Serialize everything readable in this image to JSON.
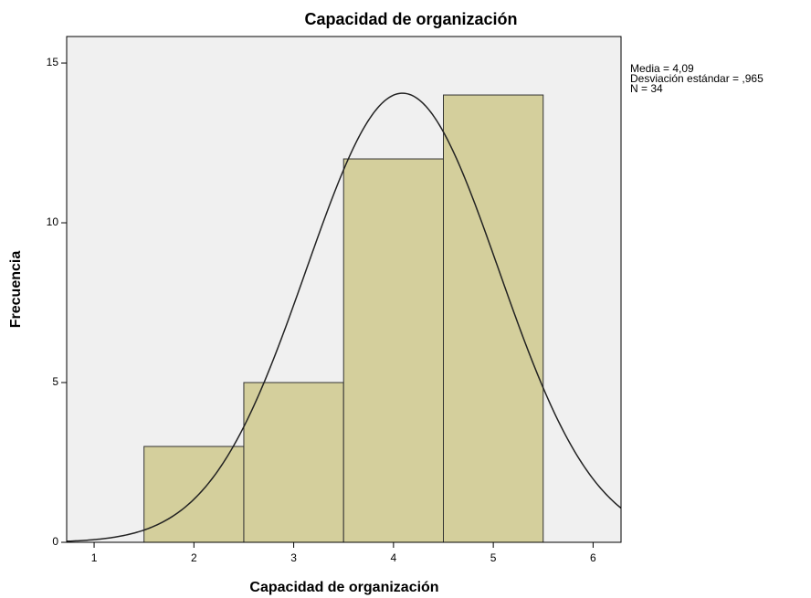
{
  "chart_data": {
    "type": "histogram",
    "title": "Capacidad de organización",
    "xlabel": "Capacidad de organización",
    "ylabel": "Frecuencia",
    "bins": [
      1.5,
      2.5,
      3.5,
      4.5,
      5.5
    ],
    "values": [
      3,
      5,
      12,
      14
    ],
    "color": "#d4cf9c",
    "background": "#f0f0f0",
    "xlim": [
      0.725,
      6.28
    ],
    "xticks": [
      1,
      2,
      3,
      4,
      5,
      6
    ],
    "ylim": [
      0,
      15.83
    ],
    "yticks": [
      0,
      5,
      10,
      15
    ],
    "normal_curve": {
      "mean": 4.09,
      "sd": 0.965,
      "n": 34
    },
    "annotations": [
      "Media = 4,09",
      "Desviación estándar = ,965",
      "N = 34"
    ]
  }
}
